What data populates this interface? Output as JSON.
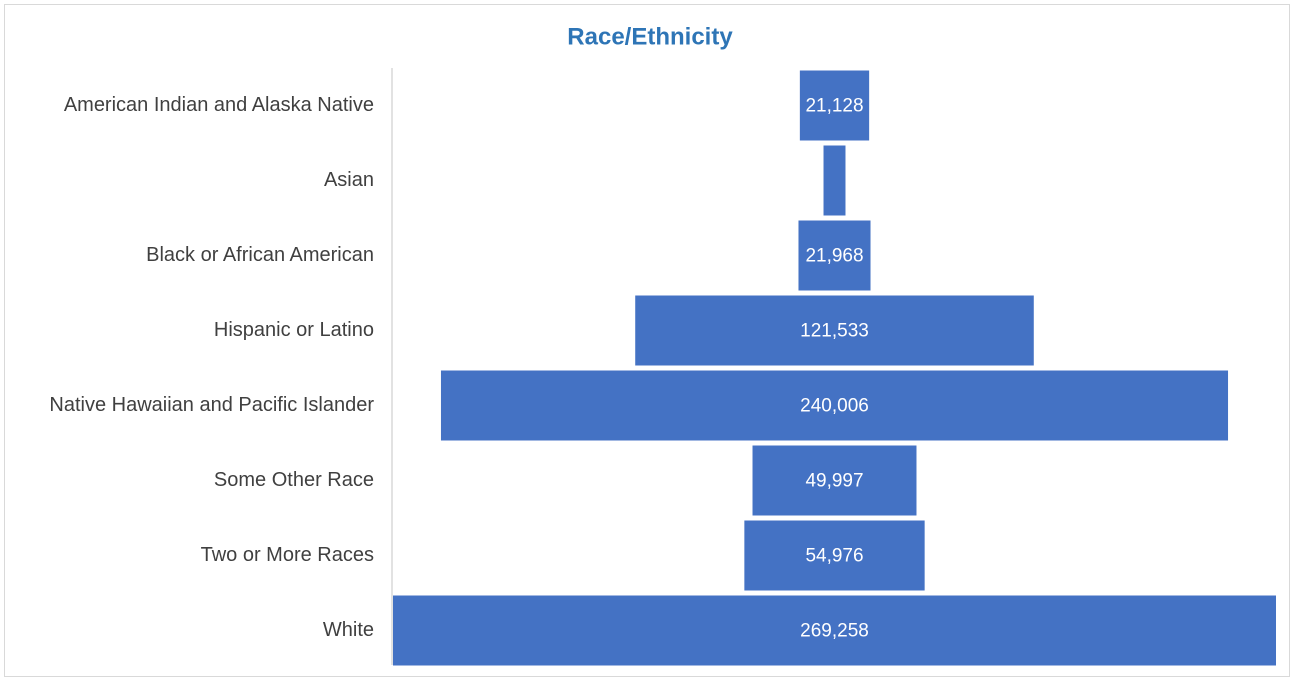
{
  "chart_data": {
    "type": "funnel",
    "title": "Race/Ethnicity",
    "categories": [
      "American Indian and Alaska Native",
      "Asian",
      "Black or African American",
      "Hispanic or Latino",
      "Native Hawaiian and Pacific Islander",
      "Some Other Race",
      "Two or More Races",
      "White"
    ],
    "values": [
      21128,
      6700,
      21968,
      121533,
      240006,
      49997,
      54976,
      269258
    ],
    "value_labels": [
      "21,128",
      null,
      "21,968",
      "121,533",
      "240,006",
      "49,997",
      "54,976",
      "269,258"
    ],
    "color": "#4472c4"
  }
}
